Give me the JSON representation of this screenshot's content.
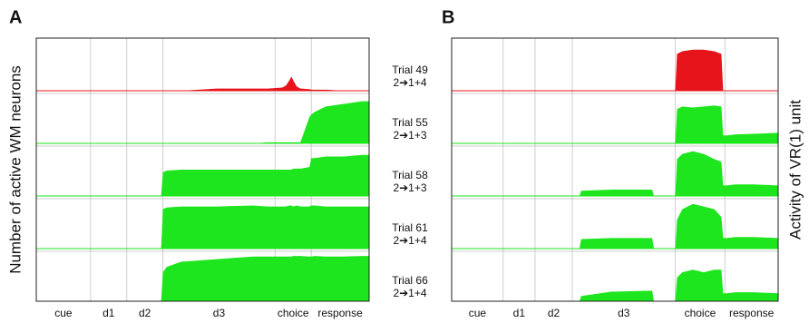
{
  "trials": [
    {
      "name": "Trial 49",
      "sequence": "2➔1+4"
    },
    {
      "name": "Trial 55",
      "sequence": "2➔1+3"
    },
    {
      "name": "Trial 58",
      "sequence": "2➔1+3"
    },
    {
      "name": "Trial 61",
      "sequence": "2➔1+4"
    },
    {
      "name": "Trial 66",
      "sequence": "2➔1+4"
    }
  ],
  "chart_data": [
    {
      "type": "area",
      "label": "A",
      "y_axis_label": "Number of active WM neurons",
      "categories": [
        "cue",
        "d1",
        "d2",
        "d3",
        "choice",
        "response"
      ],
      "phase_edges": [
        0,
        1.5,
        2.5,
        3.5,
        6.6,
        7.6,
        9.2
      ],
      "xlim": [
        0,
        9.2
      ],
      "ylim": [
        0,
        1
      ],
      "x": [
        0,
        3.45,
        3.5,
        3.6,
        4,
        5,
        6,
        6.4,
        6.8,
        6.9,
        7,
        7.05,
        7.1,
        7.2,
        7.3,
        7.55,
        7.6,
        7.7,
        8,
        8.5,
        9,
        9.2
      ],
      "series": [
        {
          "color": "#e8141c",
          "values": [
            0,
            0,
            0,
            0,
            0,
            0.04,
            0.04,
            0.04,
            0.06,
            0.1,
            0.2,
            0.27,
            0.2,
            0.08,
            0.04,
            0.03,
            0.02,
            0.02,
            0.02,
            0,
            0,
            0
          ]
        },
        {
          "color": "#1ee61e",
          "values": [
            0,
            0,
            0,
            0,
            0,
            0,
            0,
            0.02,
            0.02,
            0.02,
            0.02,
            0.02,
            0.02,
            0.02,
            0.02,
            0.5,
            0.55,
            0.6,
            0.7,
            0.75,
            0.8,
            0.8
          ]
        },
        {
          "color": "#1ee61e",
          "values": [
            0,
            0,
            0.45,
            0.48,
            0.5,
            0.5,
            0.5,
            0.5,
            0.5,
            0.5,
            0.5,
            0.5,
            0.52,
            0.52,
            0.52,
            0.55,
            0.72,
            0.72,
            0.75,
            0.75,
            0.78,
            0.78
          ]
        },
        {
          "color": "#1ee61e",
          "values": [
            0,
            0,
            0.75,
            0.78,
            0.8,
            0.8,
            0.82,
            0.8,
            0.8,
            0.8,
            0.82,
            0.82,
            0.8,
            0.82,
            0.8,
            0.8,
            0.82,
            0.82,
            0.8,
            0.8,
            0.8,
            0.8
          ]
        },
        {
          "color": "#1ee61e",
          "values": [
            0,
            0,
            0.55,
            0.65,
            0.75,
            0.8,
            0.85,
            0.85,
            0.85,
            0.85,
            0.85,
            0.85,
            0.86,
            0.86,
            0.86,
            0.85,
            0.85,
            0.86,
            0.85,
            0.85,
            0.86,
            0.86
          ]
        }
      ]
    },
    {
      "type": "area",
      "label": "B",
      "y_axis_label": "Activity of VR(1) unit",
      "categories": [
        "cue",
        "d1",
        "d2",
        "d3",
        "choice",
        "response"
      ],
      "phase_edges": [
        0,
        1.45,
        2.35,
        3.4,
        6.3,
        7.7,
        9.2
      ],
      "xlim": [
        0,
        9.2
      ],
      "ylim": [
        0,
        1
      ],
      "x": [
        0,
        3.6,
        3.65,
        4.5,
        5.65,
        5.7,
        6.3,
        6.35,
        6.5,
        6.8,
        7.1,
        7.4,
        7.6,
        7.65,
        7.75,
        8,
        8.5,
        9.2
      ],
      "series": [
        {
          "color": "#e8141c",
          "values": [
            0,
            0,
            0,
            0,
            0,
            0,
            0,
            0.7,
            0.75,
            0.78,
            0.78,
            0.75,
            0.7,
            0,
            0,
            0,
            0,
            0
          ]
        },
        {
          "color": "#1ee61e",
          "values": [
            0,
            0,
            0,
            0,
            0,
            0,
            0,
            0.65,
            0.7,
            0.68,
            0.7,
            0.72,
            0.7,
            0.15,
            0.15,
            0.17,
            0.18,
            0.2
          ]
        },
        {
          "color": "#1ee61e",
          "values": [
            0,
            0,
            0.1,
            0.12,
            0.12,
            0,
            0,
            0.7,
            0.8,
            0.85,
            0.8,
            0.7,
            0.65,
            0.2,
            0.2,
            0.22,
            0.22,
            0.2
          ]
        },
        {
          "color": "#1ee61e",
          "values": [
            0,
            0,
            0.18,
            0.2,
            0.2,
            0,
            0,
            0.55,
            0.75,
            0.85,
            0.8,
            0.75,
            0.6,
            0.2,
            0.2,
            0.22,
            0.22,
            0.2
          ]
        },
        {
          "color": "#1ee61e",
          "values": [
            0,
            0,
            0.1,
            0.18,
            0.2,
            0,
            0,
            0.45,
            0.55,
            0.6,
            0.55,
            0.6,
            0.6,
            0.15,
            0.15,
            0.17,
            0.17,
            0.15
          ]
        }
      ]
    }
  ]
}
